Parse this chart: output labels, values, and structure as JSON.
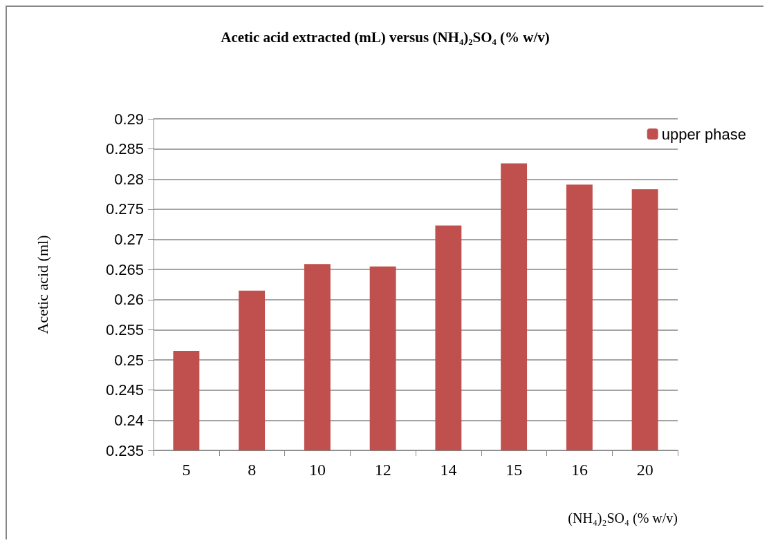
{
  "chart_data": {
    "type": "bar",
    "title": "Acetic acid extracted (mL) versus (NH₄)₂SO₄ (% w/v)",
    "xlabel": "(NH₄)₂SO₄ (% w/v)",
    "ylabel": "Acetic acid (ml)",
    "categories": [
      "5",
      "8",
      "10",
      "12",
      "14",
      "15",
      "16",
      "20"
    ],
    "series": [
      {
        "name": "upper phase",
        "color": "#c0504d",
        "values": [
          0.2515,
          0.2615,
          0.2659,
          0.2655,
          0.2723,
          0.2826,
          0.2791,
          0.2783
        ]
      }
    ],
    "ylim": [
      0.235,
      0.29
    ],
    "yticks": [
      0.235,
      0.24,
      0.245,
      0.25,
      0.255,
      0.26,
      0.265,
      0.27,
      0.275,
      0.28,
      0.285,
      0.29
    ],
    "grid": "y",
    "legend": "top right"
  }
}
